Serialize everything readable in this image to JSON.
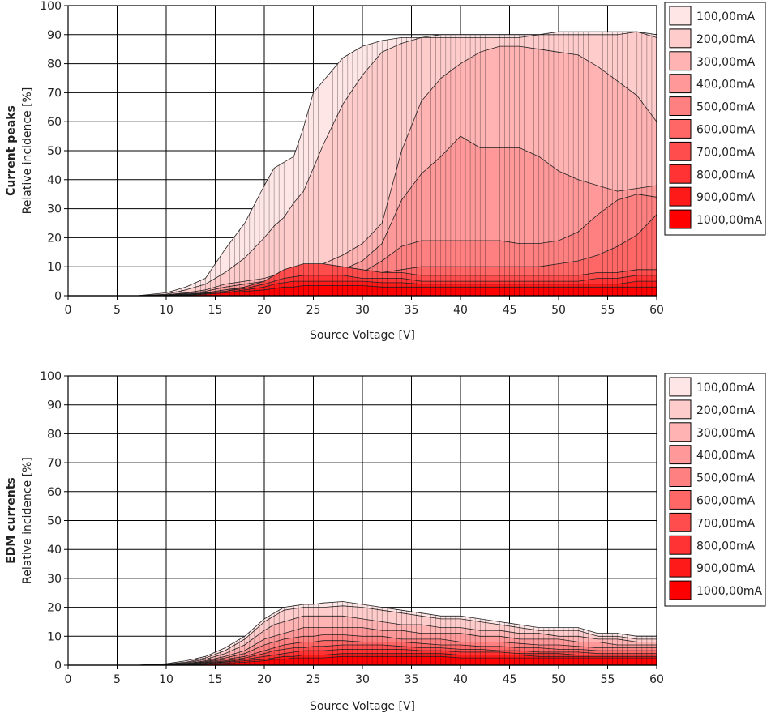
{
  "chart_data": [
    {
      "type": "area",
      "title": "Current peaks",
      "xlabel": "Source Voltage [V]",
      "ylabel": "Relative incidence [%]",
      "xlim": [
        0,
        60
      ],
      "ylim": [
        0,
        100
      ],
      "x_ticks": [
        "0",
        "5",
        "10",
        "15",
        "20",
        "25",
        "30",
        "35",
        "40",
        "45",
        "50",
        "55",
        "60"
      ],
      "y_ticks": [
        "0",
        "10",
        "20",
        "30",
        "40",
        "50",
        "60",
        "70",
        "80",
        "90",
        "100"
      ],
      "grid": true,
      "legend_position": "right",
      "x": [
        0,
        7,
        10,
        12,
        14,
        16,
        18,
        20,
        21,
        22,
        23,
        24,
        25,
        26,
        28,
        30,
        32,
        34,
        36,
        38,
        40,
        42,
        44,
        46,
        48,
        50,
        52,
        54,
        56,
        58,
        60
      ],
      "series": [
        {
          "name": "100,00mA",
          "color": "#ffe6e6",
          "values": [
            0,
            0,
            1,
            3,
            6,
            16,
            25,
            38,
            44,
            46,
            48,
            58,
            70,
            74,
            82,
            86,
            88,
            89,
            89,
            90,
            90,
            90,
            90,
            90,
            90,
            91,
            91,
            91,
            91,
            91,
            90
          ]
        },
        {
          "name": "200,00mA",
          "color": "#ffcccc",
          "values": [
            0,
            0,
            0.5,
            2,
            4,
            8,
            13,
            20,
            24,
            27,
            32,
            36,
            44,
            52,
            66,
            76,
            84,
            87,
            89,
            89,
            89,
            89,
            89,
            89,
            90,
            90,
            90,
            90,
            90,
            91,
            89
          ]
        },
        {
          "name": "300,00mA",
          "color": "#ffb3b3",
          "values": [
            0,
            0,
            0.3,
            1,
            2,
            4,
            5,
            6,
            7,
            7,
            8,
            9,
            10,
            11,
            14,
            18,
            25,
            50,
            67,
            75,
            80,
            84,
            86,
            86,
            85,
            84,
            83,
            79,
            74,
            69,
            60
          ]
        },
        {
          "name": "400,00mA",
          "color": "#ff9999",
          "values": [
            0,
            0,
            0.2,
            0.8,
            1.5,
            3,
            4,
            5,
            6,
            6,
            6,
            7,
            8,
            8,
            9,
            12,
            18,
            33,
            42,
            48,
            55,
            51,
            51,
            51,
            48,
            43,
            40,
            38,
            36,
            37,
            38
          ]
        },
        {
          "name": "500,00mA",
          "color": "#ff8080",
          "values": [
            0,
            0,
            0.2,
            0.6,
            1,
            2,
            3,
            4,
            4,
            5,
            5,
            6,
            6,
            7,
            7,
            8,
            12,
            17,
            19,
            19,
            19,
            19,
            19,
            18,
            18,
            19,
            22,
            28,
            33,
            35,
            34
          ]
        },
        {
          "name": "600,00mA",
          "color": "#ff6666",
          "values": [
            0,
            0,
            0.1,
            0.5,
            1,
            1.5,
            2,
            3,
            3,
            4,
            4,
            5,
            5,
            5,
            6,
            7,
            8,
            9,
            10,
            10,
            10,
            10,
            10,
            10,
            10,
            11,
            12,
            14,
            17,
            21,
            28
          ]
        },
        {
          "name": "700,00mA",
          "color": "#ff4d4d",
          "values": [
            0,
            0,
            0.1,
            0.4,
            1,
            1.5,
            3,
            5,
            7,
            9,
            10,
            11,
            11,
            11,
            10,
            9,
            8,
            8,
            7,
            7,
            7,
            7,
            7,
            7,
            7,
            7,
            7,
            8,
            8,
            9,
            9
          ]
        },
        {
          "name": "800,00mA",
          "color": "#ff3333",
          "values": [
            0,
            0,
            0.1,
            0.3,
            0.8,
            1.5,
            2.5,
            4,
            5,
            6,
            6.5,
            7,
            7,
            7,
            7,
            6,
            6,
            6,
            5,
            5,
            5,
            5,
            5,
            5,
            5,
            5,
            5,
            6,
            6,
            7,
            7
          ]
        },
        {
          "name": "900,00mA",
          "color": "#ff1a1a",
          "values": [
            0,
            0,
            0.1,
            0.3,
            0.6,
            1,
            2,
            3,
            4,
            4.5,
            5,
            5,
            5,
            5,
            5,
            5,
            4.5,
            4.5,
            4,
            4,
            4,
            4,
            4,
            4,
            4,
            4,
            4,
            4,
            4,
            5,
            5
          ]
        },
        {
          "name": "1000,00mA",
          "color": "#ff0000",
          "values": [
            0,
            0,
            0,
            0.2,
            0.5,
            1,
            1.5,
            2,
            2.5,
            3,
            3,
            3.5,
            3.5,
            3.5,
            3.5,
            3.5,
            3,
            3,
            3,
            3,
            3,
            3,
            3,
            3,
            3,
            3,
            3,
            3,
            3,
            3,
            3
          ]
        }
      ]
    },
    {
      "type": "area",
      "title": "EDM currents",
      "xlabel": "Source Voltage [V]",
      "ylabel": "Relative incidence [%]",
      "xlim": [
        0,
        60
      ],
      "ylim": [
        0,
        100
      ],
      "x_ticks": [
        "0",
        "5",
        "10",
        "15",
        "20",
        "25",
        "30",
        "35",
        "40",
        "45",
        "50",
        "55",
        "60"
      ],
      "y_ticks": [
        "0",
        "10",
        "20",
        "30",
        "40",
        "50",
        "60",
        "70",
        "80",
        "90",
        "100"
      ],
      "grid": true,
      "legend_position": "right",
      "x": [
        0,
        7,
        10,
        12,
        14,
        16,
        18,
        20,
        21,
        22,
        23,
        24,
        25,
        26,
        28,
        30,
        32,
        34,
        36,
        38,
        40,
        42,
        44,
        46,
        48,
        50,
        52,
        54,
        56,
        58,
        60
      ],
      "series": [
        {
          "name": "100,00mA",
          "color": "#ffe6e6",
          "values": [
            0,
            0,
            0.5,
            1.5,
            3,
            6,
            10,
            16,
            18,
            20,
            20.5,
            21,
            21,
            21.5,
            22,
            21,
            20,
            19,
            18,
            17,
            17,
            16,
            15,
            14,
            13,
            13,
            13,
            11,
            11,
            10,
            10
          ]
        },
        {
          "name": "200,00mA",
          "color": "#ffcccc",
          "values": [
            0,
            0,
            0.4,
            1,
            2.5,
            5,
            9,
            15,
            17,
            19,
            19.5,
            20,
            20,
            20,
            20.5,
            20,
            19,
            18,
            17,
            16,
            16,
            15,
            14,
            13,
            12,
            12,
            12,
            10,
            10,
            9,
            9
          ]
        },
        {
          "name": "300,00mA",
          "color": "#ffb3b3",
          "values": [
            0,
            0,
            0.3,
            0.8,
            2,
            4,
            7,
            12,
            14,
            15,
            16,
            17,
            17,
            17,
            17,
            16,
            15,
            14,
            14,
            13,
            13,
            12,
            12,
            11,
            11,
            10,
            10,
            9,
            9,
            8,
            8
          ]
        },
        {
          "name": "400,00mA",
          "color": "#ff9999",
          "values": [
            0,
            0,
            0.2,
            0.6,
            1.5,
            3,
            5,
            9,
            10,
            11,
            12,
            13,
            13,
            13,
            13,
            13,
            12,
            12,
            11,
            11,
            11,
            10,
            10,
            9,
            9,
            9,
            8,
            8,
            7,
            7,
            7
          ]
        },
        {
          "name": "500,00mA",
          "color": "#ff8080",
          "values": [
            0,
            0,
            0.2,
            0.5,
            1.2,
            2.5,
            4,
            7,
            8,
            9,
            9.5,
            10,
            10,
            10.5,
            10.5,
            10,
            10,
            9,
            9,
            9,
            8,
            8,
            8,
            7.5,
            7,
            7,
            6.5,
            6,
            6,
            6,
            6
          ]
        },
        {
          "name": "600,00mA",
          "color": "#ff6666",
          "values": [
            0,
            0,
            0.1,
            0.4,
            1,
            2,
            3,
            5,
            6,
            7,
            7.5,
            8,
            8,
            8.5,
            8.5,
            8,
            8,
            8,
            7.5,
            7,
            7,
            6.5,
            6.5,
            6,
            6,
            5.5,
            5.5,
            5,
            5,
            5,
            5
          ]
        },
        {
          "name": "700,00mA",
          "color": "#ff4d4d",
          "values": [
            0,
            0,
            0.1,
            0.3,
            0.8,
            1.5,
            2.5,
            4,
            5,
            5.5,
            6,
            6,
            6.5,
            6.5,
            7,
            7,
            7,
            6.5,
            6,
            6,
            5.5,
            5.5,
            5,
            5,
            4.5,
            4.5,
            4.5,
            4,
            4,
            4,
            4
          ]
        },
        {
          "name": "800,00mA",
          "color": "#ff3333",
          "values": [
            0,
            0,
            0.1,
            0.2,
            0.6,
            1.2,
            2,
            3,
            3.5,
            4,
            4.5,
            5,
            5,
            5,
            5.5,
            5.5,
            5.5,
            5.5,
            5,
            5,
            4.5,
            4.5,
            4.5,
            4,
            4,
            4,
            3.5,
            3.5,
            3.5,
            3.5,
            3.5
          ]
        },
        {
          "name": "900,00mA",
          "color": "#ff1a1a",
          "values": [
            0,
            0,
            0,
            0.2,
            0.5,
            1,
            1.5,
            2,
            2.5,
            3,
            3,
            3.5,
            3.5,
            3.5,
            4,
            4,
            4,
            4,
            4,
            4,
            3.5,
            3.5,
            3.5,
            3.5,
            3,
            3,
            3,
            3,
            3,
            3,
            3
          ]
        },
        {
          "name": "1000,00mA",
          "color": "#ff0000",
          "values": [
            0,
            0,
            0,
            0.1,
            0.3,
            0.7,
            1,
            1.5,
            2,
            2,
            2.5,
            2.5,
            2.5,
            2.5,
            3,
            3,
            3,
            3,
            3,
            3,
            2.5,
            2.5,
            2.5,
            2.5,
            2.5,
            2.5,
            2.5,
            2.5,
            2.5,
            2.5,
            2.5
          ]
        }
      ]
    }
  ]
}
